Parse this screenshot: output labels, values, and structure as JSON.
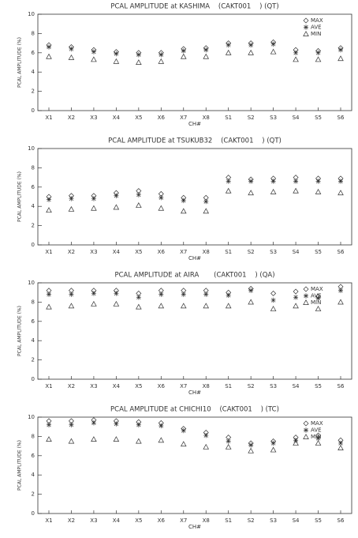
{
  "chart_data": [
    {
      "type": "scatter",
      "title": "PCAL AMPLITUDE at KASHIMA    (CAKT001    ) (QT)",
      "xlabel": "CH#",
      "ylabel": "PCAL AMPLITUDE (%)",
      "categories": [
        "X1",
        "X2",
        "X3",
        "X4",
        "X5",
        "X6",
        "X7",
        "X8",
        "S1",
        "S2",
        "S3",
        "S4",
        "S5",
        "S6"
      ],
      "ylim": [
        0,
        10
      ],
      "yticks": [
        0,
        2,
        4,
        6,
        8,
        10
      ],
      "legend": "upper right",
      "color": "#333333",
      "series": [
        {
          "name": "MAX",
          "marker": "diamond",
          "values": [
            6.8,
            6.6,
            6.3,
            6.1,
            6.0,
            6.0,
            6.4,
            6.5,
            7.0,
            7.0,
            7.1,
            6.3,
            6.2,
            6.5
          ]
        },
        {
          "name": "AVE",
          "marker": "asterisk",
          "values": [
            6.6,
            6.4,
            6.1,
            5.9,
            5.8,
            5.8,
            6.2,
            6.3,
            6.8,
            6.8,
            6.9,
            6.0,
            6.0,
            6.3
          ]
        },
        {
          "name": "MIN",
          "marker": "triangle",
          "values": [
            5.6,
            5.5,
            5.3,
            5.1,
            5.0,
            5.1,
            5.6,
            5.6,
            6.0,
            6.0,
            6.1,
            5.3,
            5.3,
            5.4
          ]
        }
      ]
    },
    {
      "type": "scatter",
      "title": "PCAL AMPLITUDE at TSUKUB32    (CAKT001    ) (QT)",
      "xlabel": "CH#",
      "ylabel": "PCAL AMPLITUDE (%)",
      "categories": [
        "X1",
        "X2",
        "X3",
        "X4",
        "X5",
        "X6",
        "X7",
        "X8",
        "S1",
        "S2",
        "S3",
        "S4",
        "S5",
        "S6"
      ],
      "ylim": [
        0,
        10
      ],
      "yticks": [
        0,
        2,
        4,
        6,
        8,
        10
      ],
      "legend": false,
      "color": "#333333",
      "series": [
        {
          "marker": "diamond",
          "values": [
            5.0,
            5.1,
            5.1,
            5.4,
            5.6,
            5.3,
            4.9,
            4.9,
            7.0,
            6.8,
            6.9,
            7.0,
            6.9,
            6.9
          ]
        },
        {
          "marker": "asterisk",
          "values": [
            4.7,
            4.8,
            4.8,
            5.1,
            5.2,
            4.9,
            4.6,
            4.5,
            6.6,
            6.6,
            6.6,
            6.6,
            6.6,
            6.6
          ]
        },
        {
          "marker": "triangle",
          "values": [
            3.6,
            3.7,
            3.8,
            3.9,
            4.1,
            3.8,
            3.5,
            3.5,
            5.6,
            5.4,
            5.5,
            5.6,
            5.5,
            5.4
          ]
        }
      ]
    },
    {
      "type": "scatter",
      "title": "PCAL AMPLITUDE at AIRA       (CAKT001    ) (QA)",
      "xlabel": "CH#",
      "ylabel": "PCAL AMPLITUDE (%)",
      "categories": [
        "X1",
        "X2",
        "X3",
        "X4",
        "X5",
        "X6",
        "X7",
        "X8",
        "S1",
        "S2",
        "S3",
        "S4",
        "S5",
        "S6"
      ],
      "ylim": [
        0,
        10
      ],
      "yticks": [
        0,
        2,
        4,
        6,
        8,
        10
      ],
      "legend": "upper right",
      "color": "#333333",
      "series": [
        {
          "name": "MAX",
          "marker": "diamond",
          "values": [
            9.2,
            9.2,
            9.2,
            9.2,
            8.9,
            9.2,
            9.2,
            9.2,
            9.0,
            9.4,
            8.9,
            9.1,
            8.6,
            9.6
          ]
        },
        {
          "name": "AVE",
          "marker": "asterisk",
          "values": [
            8.8,
            8.8,
            8.9,
            8.9,
            8.5,
            8.8,
            8.8,
            8.8,
            8.7,
            9.2,
            8.2,
            8.5,
            8.4,
            9.2
          ]
        },
        {
          "name": "MIN",
          "marker": "triangle",
          "values": [
            7.5,
            7.6,
            7.8,
            7.8,
            7.5,
            7.6,
            7.6,
            7.6,
            7.6,
            8.0,
            7.3,
            7.6,
            7.3,
            8.0
          ]
        }
      ]
    },
    {
      "type": "scatter",
      "title": "PCAL AMPLITUDE at CHICHI10    (CAKT001    ) (TC)",
      "xlabel": "CH#",
      "ylabel": "PCAL AMPLITUDE (%)",
      "categories": [
        "X1",
        "X2",
        "X3",
        "X4",
        "X5",
        "X6",
        "X7",
        "X8",
        "S1",
        "S2",
        "S3",
        "S4",
        "S5",
        "S6"
      ],
      "ylim": [
        0,
        10
      ],
      "yticks": [
        0,
        2,
        4,
        6,
        8,
        10
      ],
      "legend": "upper right",
      "color": "#333333",
      "series": [
        {
          "name": "MAX",
          "marker": "diamond",
          "values": [
            9.6,
            9.6,
            9.7,
            9.6,
            9.5,
            9.4,
            8.8,
            8.4,
            7.9,
            7.3,
            7.5,
            7.9,
            8.1,
            7.6
          ]
        },
        {
          "name": "AVE",
          "marker": "asterisk",
          "values": [
            9.2,
            9.2,
            9.4,
            9.3,
            9.2,
            9.1,
            8.6,
            8.1,
            7.5,
            7.1,
            7.3,
            7.6,
            7.8,
            7.3
          ]
        },
        {
          "name": "MIN",
          "marker": "triangle",
          "values": [
            7.7,
            7.5,
            7.7,
            7.7,
            7.5,
            7.6,
            7.2,
            6.9,
            6.9,
            6.5,
            6.6,
            7.3,
            7.3,
            6.8
          ]
        }
      ]
    }
  ]
}
